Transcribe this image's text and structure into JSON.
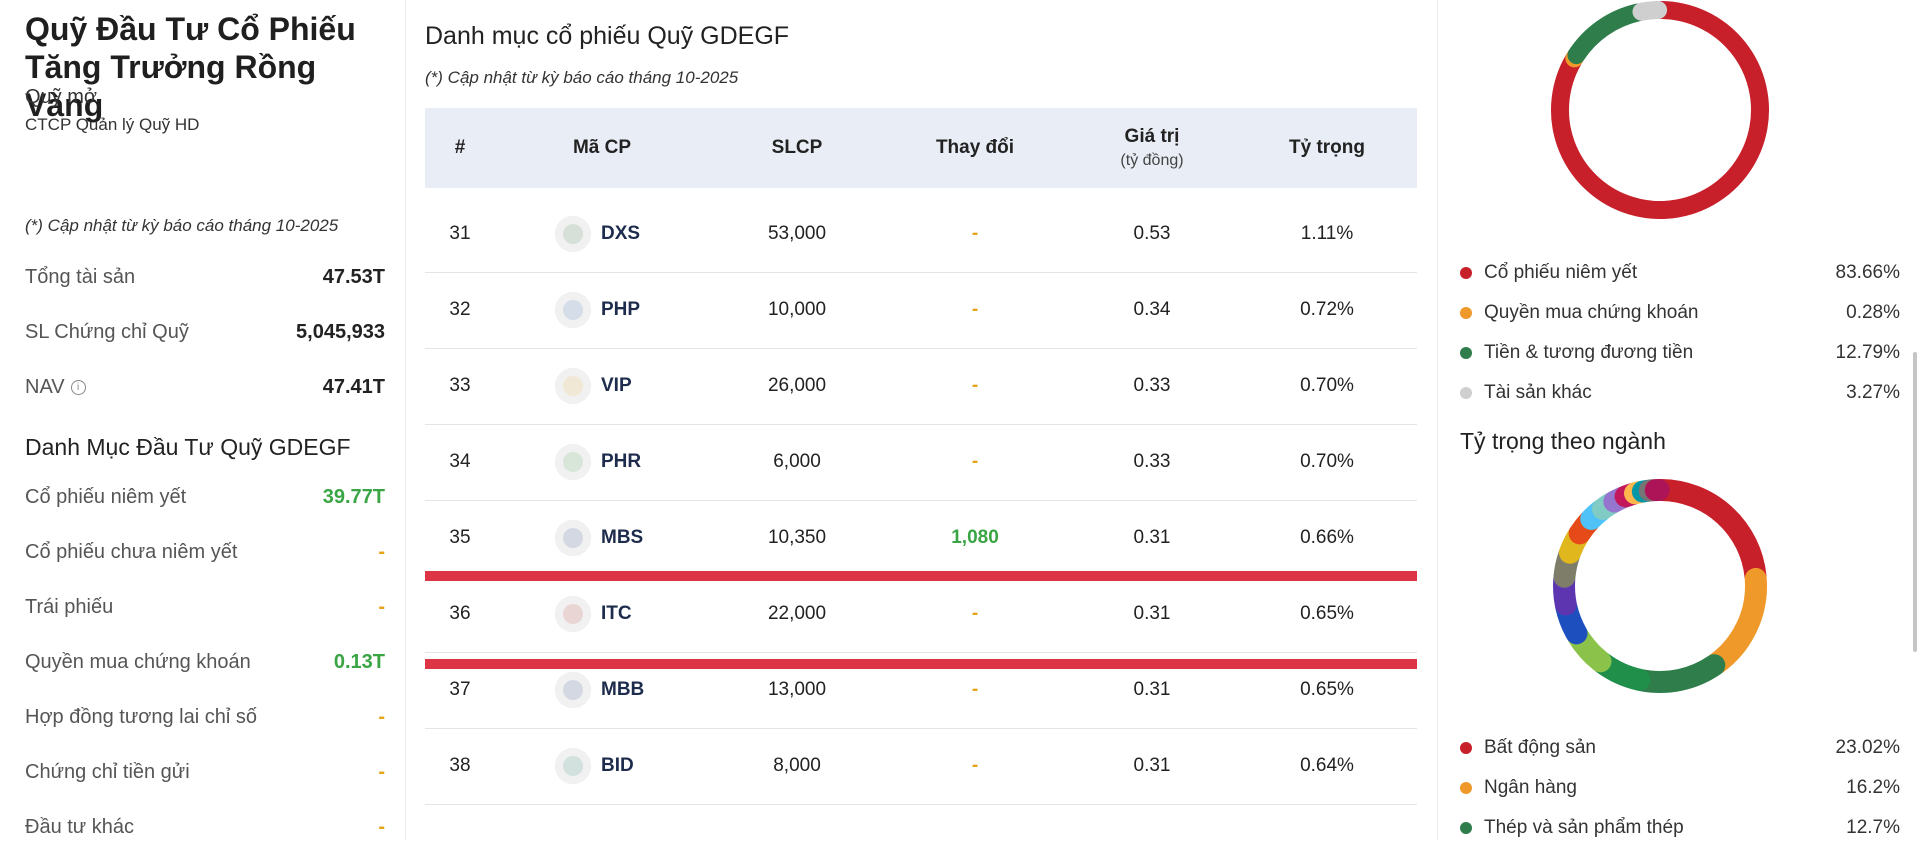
{
  "fund": {
    "title": "Quỹ Đầu Tư Cổ Phiếu Tăng Trưởng Rồng Vàng",
    "type": "Quỹ mở",
    "company": "CTCP Quản lý Quỹ HD",
    "update_note": "(*) Cập nhật từ kỳ báo cáo tháng 10-2025",
    "stats": [
      {
        "label": "Tổng tài sản",
        "value": "47.53T"
      },
      {
        "label": "SL Chứng chỉ Quỹ",
        "value": "5,045,933"
      },
      {
        "label": "NAV",
        "value": "47.41T",
        "info_icon": "i"
      }
    ],
    "portfolio_title": "Danh Mục Đầu Tư Quỹ GDEGF",
    "allocations": [
      {
        "label": "Cổ phiếu niêm yết",
        "value": "39.77T",
        "style": "green"
      },
      {
        "label": "Cổ phiếu chưa niêm yết",
        "value": "-",
        "style": "dash"
      },
      {
        "label": "Trái phiếu",
        "value": "-",
        "style": "dash"
      },
      {
        "label": "Quyền mua chứng khoán",
        "value": "0.13T",
        "style": "green"
      },
      {
        "label": "Hợp đồng tương lai chỉ số",
        "value": "-",
        "style": "dash"
      },
      {
        "label": "Chứng chỉ tiền gửi",
        "value": "-",
        "style": "dash"
      },
      {
        "label": "Đầu tư khác",
        "value": "-",
        "style": "dash"
      }
    ]
  },
  "holdings": {
    "title": "Danh mục cổ phiếu Quỹ GDEGF",
    "update_note": "(*) Cập nhật từ kỳ báo cáo tháng 10-2025",
    "columns": {
      "index": "#",
      "ticker": "Mã CP",
      "shares": "SLCP",
      "change": "Thay đổi",
      "value": "Giá trị",
      "value_unit": "(tỷ đồng)",
      "weight": "Tỷ trọng"
    },
    "rows": [
      {
        "index": "31",
        "ticker": "DXS",
        "shares": "53,000",
        "change": "-",
        "value": "0.53",
        "weight": "1.11%",
        "logo_color": "#2a7a3a"
      },
      {
        "index": "32",
        "ticker": "PHP",
        "shares": "10,000",
        "change": "-",
        "value": "0.34",
        "weight": "0.72%",
        "logo_color": "#1b5fb3"
      },
      {
        "index": "33",
        "ticker": "VIP",
        "shares": "26,000",
        "change": "-",
        "value": "0.33",
        "weight": "0.70%",
        "logo_color": "#f0a91b"
      },
      {
        "index": "34",
        "ticker": "PHR",
        "shares": "6,000",
        "change": "-",
        "value": "0.33",
        "weight": "0.70%",
        "logo_color": "#3aa544"
      },
      {
        "index": "35",
        "ticker": "MBS",
        "shares": "10,350",
        "change": "1,080",
        "value": "0.31",
        "weight": "0.66%",
        "logo_color": "#1d3d8f"
      },
      {
        "index": "36",
        "ticker": "ITC",
        "shares": "22,000",
        "change": "-",
        "value": "0.31",
        "weight": "0.65%",
        "logo_color": "#c62828"
      },
      {
        "index": "37",
        "ticker": "MBB",
        "shares": "13,000",
        "change": "-",
        "value": "0.31",
        "weight": "0.65%",
        "logo_color": "#1d3d8f"
      },
      {
        "index": "38",
        "ticker": "BID",
        "shares": "8,000",
        "change": "-",
        "value": "0.31",
        "weight": "0.64%",
        "logo_color": "#0f7a6b"
      }
    ]
  },
  "asset_chart": {
    "legend": [
      {
        "label": "Cổ phiếu niêm yết",
        "value": "83.66%",
        "color": "#c8202a"
      },
      {
        "label": "Quyền mua chứng khoán",
        "value": "0.28%",
        "color": "#f0992b"
      },
      {
        "label": "Tiền & tương đương tiền",
        "value": "12.79%",
        "color": "#2e7d4a"
      },
      {
        "label": "Tài sản khác",
        "value": "3.27%",
        "color": "#cfcfcf"
      }
    ]
  },
  "sector_chart": {
    "title": "Tỷ trọng theo ngành",
    "legend": [
      {
        "label": "Bất động sản",
        "value": "23.02%",
        "color": "#c8202a"
      },
      {
        "label": "Ngân hàng",
        "value": "16.2%",
        "color": "#f0992b"
      },
      {
        "label": "Thép và sản phẩm thép",
        "value": "12.7%",
        "color": "#2e7d4a"
      }
    ]
  }
}
